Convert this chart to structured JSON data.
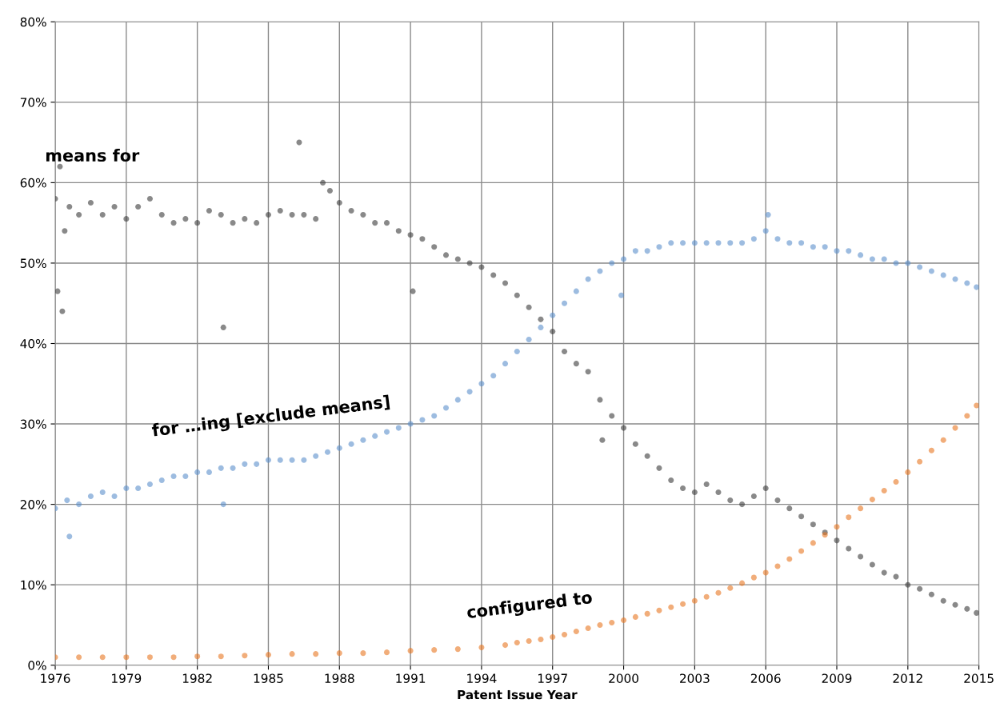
{
  "chart_data": {
    "type": "scatter",
    "xlabel": "Patent Issue Year",
    "grid": true,
    "legend": false,
    "marker": "circle",
    "xlim": [
      1976,
      2015
    ],
    "xticks": [
      1976,
      1979,
      1982,
      1985,
      1988,
      1991,
      1994,
      1997,
      2000,
      2003,
      2006,
      2009,
      2012,
      2015
    ],
    "ylim": [
      0,
      80
    ],
    "yticks": [
      {
        "value": 0,
        "label": "0%"
      },
      {
        "value": 10,
        "label": "10%"
      },
      {
        "value": 20,
        "label": "20%"
      },
      {
        "value": 30,
        "label": "30%"
      },
      {
        "value": 40,
        "label": "40%"
      },
      {
        "value": 50,
        "label": "50%"
      },
      {
        "value": 60,
        "label": "60%"
      },
      {
        "value": 70,
        "label": "70%"
      },
      {
        "value": 80,
        "label": "80%"
      }
    ],
    "series": [
      {
        "name": "means for",
        "color": "#3a3a3a",
        "x": [
          1976,
          1976.1,
          1976.2,
          1976.3,
          1976.4,
          1976.6,
          1977,
          1977.5,
          1978,
          1978.5,
          1979,
          1979.5,
          1980,
          1980.5,
          1981,
          1981.5,
          1982,
          1982.5,
          1983,
          1983.1,
          1983.5,
          1984,
          1984.5,
          1985,
          1985.5,
          1986,
          1986.3,
          1986.5,
          1987,
          1987.3,
          1987.6,
          1988,
          1988.5,
          1989,
          1989.5,
          1990,
          1990.5,
          1991,
          1991.1,
          1991.5,
          1992,
          1992.5,
          1993,
          1993.5,
          1994,
          1994.5,
          1995,
          1995.5,
          1996,
          1996.5,
          1997,
          1997.5,
          1998,
          1998.5,
          1999,
          1999.1,
          1999.5,
          2000,
          2000.5,
          2001,
          2001.5,
          2002,
          2002.5,
          2003,
          2003.5,
          2004,
          2004.5,
          2005,
          2005.5,
          2006,
          2006.5,
          2007,
          2007.5,
          2008,
          2008.5,
          2009,
          2009.5,
          2010,
          2010.5,
          2011,
          2011.5,
          2012,
          2012.5,
          2013,
          2013.5,
          2014,
          2014.5,
          2014.9
        ],
        "values": [
          58,
          46.5,
          62,
          44,
          54,
          57,
          56,
          57.5,
          56,
          57,
          55.5,
          57,
          58,
          56,
          55,
          55.5,
          55,
          56.5,
          56,
          42,
          55,
          55.5,
          55,
          56,
          56.5,
          56,
          65,
          56,
          55.5,
          60,
          59,
          57.5,
          56.5,
          56,
          55,
          55,
          54,
          53.5,
          46.5,
          53,
          52,
          51,
          50.5,
          50,
          49.5,
          48.5,
          47.5,
          46,
          44.5,
          43,
          41.5,
          39,
          37.5,
          36.5,
          33,
          28,
          31,
          29.5,
          27.5,
          26,
          24.5,
          23,
          22,
          21.5,
          22.5,
          21.5,
          20.5,
          20,
          21,
          22,
          20.5,
          19.5,
          18.5,
          17.5,
          16.5,
          15.5,
          14.5,
          13.5,
          12.5,
          11.5,
          11,
          10,
          9.5,
          8.8,
          8,
          7.5,
          7,
          6.5
        ]
      },
      {
        "name": "for …ing [exclude means]",
        "color": "#5b8fcb",
        "x": [
          1976,
          1976.5,
          1976.6,
          1977,
          1977.5,
          1978,
          1978.5,
          1979,
          1979.5,
          1980,
          1980.5,
          1981,
          1981.5,
          1982,
          1982.5,
          1983,
          1983.1,
          1983.5,
          1984,
          1984.5,
          1985,
          1985.5,
          1986,
          1986.5,
          1987,
          1987.5,
          1988,
          1988.5,
          1989,
          1989.5,
          1990,
          1990.5,
          1991,
          1991.5,
          1992,
          1992.5,
          1993,
          1993.5,
          1994,
          1994.5,
          1995,
          1995.5,
          1996,
          1996.5,
          1997,
          1997.5,
          1998,
          1998.5,
          1999,
          1999.5,
          1999.9,
          2000,
          2000.5,
          2001,
          2001.5,
          2002,
          2002.5,
          2003,
          2003.5,
          2004,
          2004.5,
          2005,
          2005.5,
          2006,
          2006.1,
          2006.5,
          2007,
          2007.5,
          2008,
          2008.5,
          2009,
          2009.5,
          2010,
          2010.5,
          2011,
          2011.5,
          2012,
          2012.5,
          2013,
          2013.5,
          2014,
          2014.5,
          2014.9
        ],
        "values": [
          19.5,
          20.5,
          16,
          20,
          21,
          21.5,
          21,
          22,
          22,
          22.5,
          23,
          23.5,
          23.5,
          24,
          24,
          24.5,
          20,
          24.5,
          25,
          25,
          25.5,
          25.5,
          25.5,
          25.5,
          26,
          26.5,
          27,
          27.5,
          28,
          28.5,
          29,
          29.5,
          30,
          30.5,
          31,
          32,
          33,
          34,
          35,
          36,
          37.5,
          39,
          40.5,
          42,
          43.5,
          45,
          46.5,
          48,
          49,
          50,
          46,
          50.5,
          51.5,
          51.5,
          52,
          52.5,
          52.5,
          52.5,
          52.5,
          52.5,
          52.5,
          52.5,
          53,
          54,
          56,
          53,
          52.5,
          52.5,
          52,
          52,
          51.5,
          51.5,
          51,
          50.5,
          50.5,
          50,
          50,
          49.5,
          49,
          48.5,
          48,
          47.5,
          47
        ]
      },
      {
        "name": "configured to",
        "color": "#e87722",
        "x": [
          1976,
          1977,
          1978,
          1979,
          1980,
          1981,
          1982,
          1983,
          1984,
          1985,
          1986,
          1987,
          1988,
          1989,
          1990,
          1991,
          1992,
          1993,
          1994,
          1995,
          1995.5,
          1996,
          1996.5,
          1997,
          1997.5,
          1998,
          1998.5,
          1999,
          1999.5,
          2000,
          2000.5,
          2001,
          2001.5,
          2002,
          2002.5,
          2003,
          2003.5,
          2004,
          2004.5,
          2005,
          2005.5,
          2006,
          2006.5,
          2007,
          2007.5,
          2008,
          2008.5,
          2009,
          2009.5,
          2010,
          2010.5,
          2011,
          2011.5,
          2012,
          2012.5,
          2013,
          2013.5,
          2014,
          2014.5,
          2014.9
        ],
        "values": [
          1,
          1,
          1,
          1,
          1,
          1,
          1.1,
          1.1,
          1.2,
          1.3,
          1.4,
          1.4,
          1.5,
          1.5,
          1.6,
          1.8,
          1.9,
          2,
          2.2,
          2.5,
          2.8,
          3,
          3.2,
          3.5,
          3.8,
          4.2,
          4.6,
          5,
          5.3,
          5.6,
          6,
          6.4,
          6.8,
          7.2,
          7.6,
          8,
          8.5,
          9,
          9.6,
          10.2,
          10.9,
          11.5,
          12.3,
          13.2,
          14.2,
          15.2,
          16.2,
          17.2,
          18.4,
          19.5,
          20.6,
          21.7,
          22.8,
          24,
          25.3,
          26.7,
          28,
          29.5,
          31,
          32.3
        ]
      }
    ]
  }
}
